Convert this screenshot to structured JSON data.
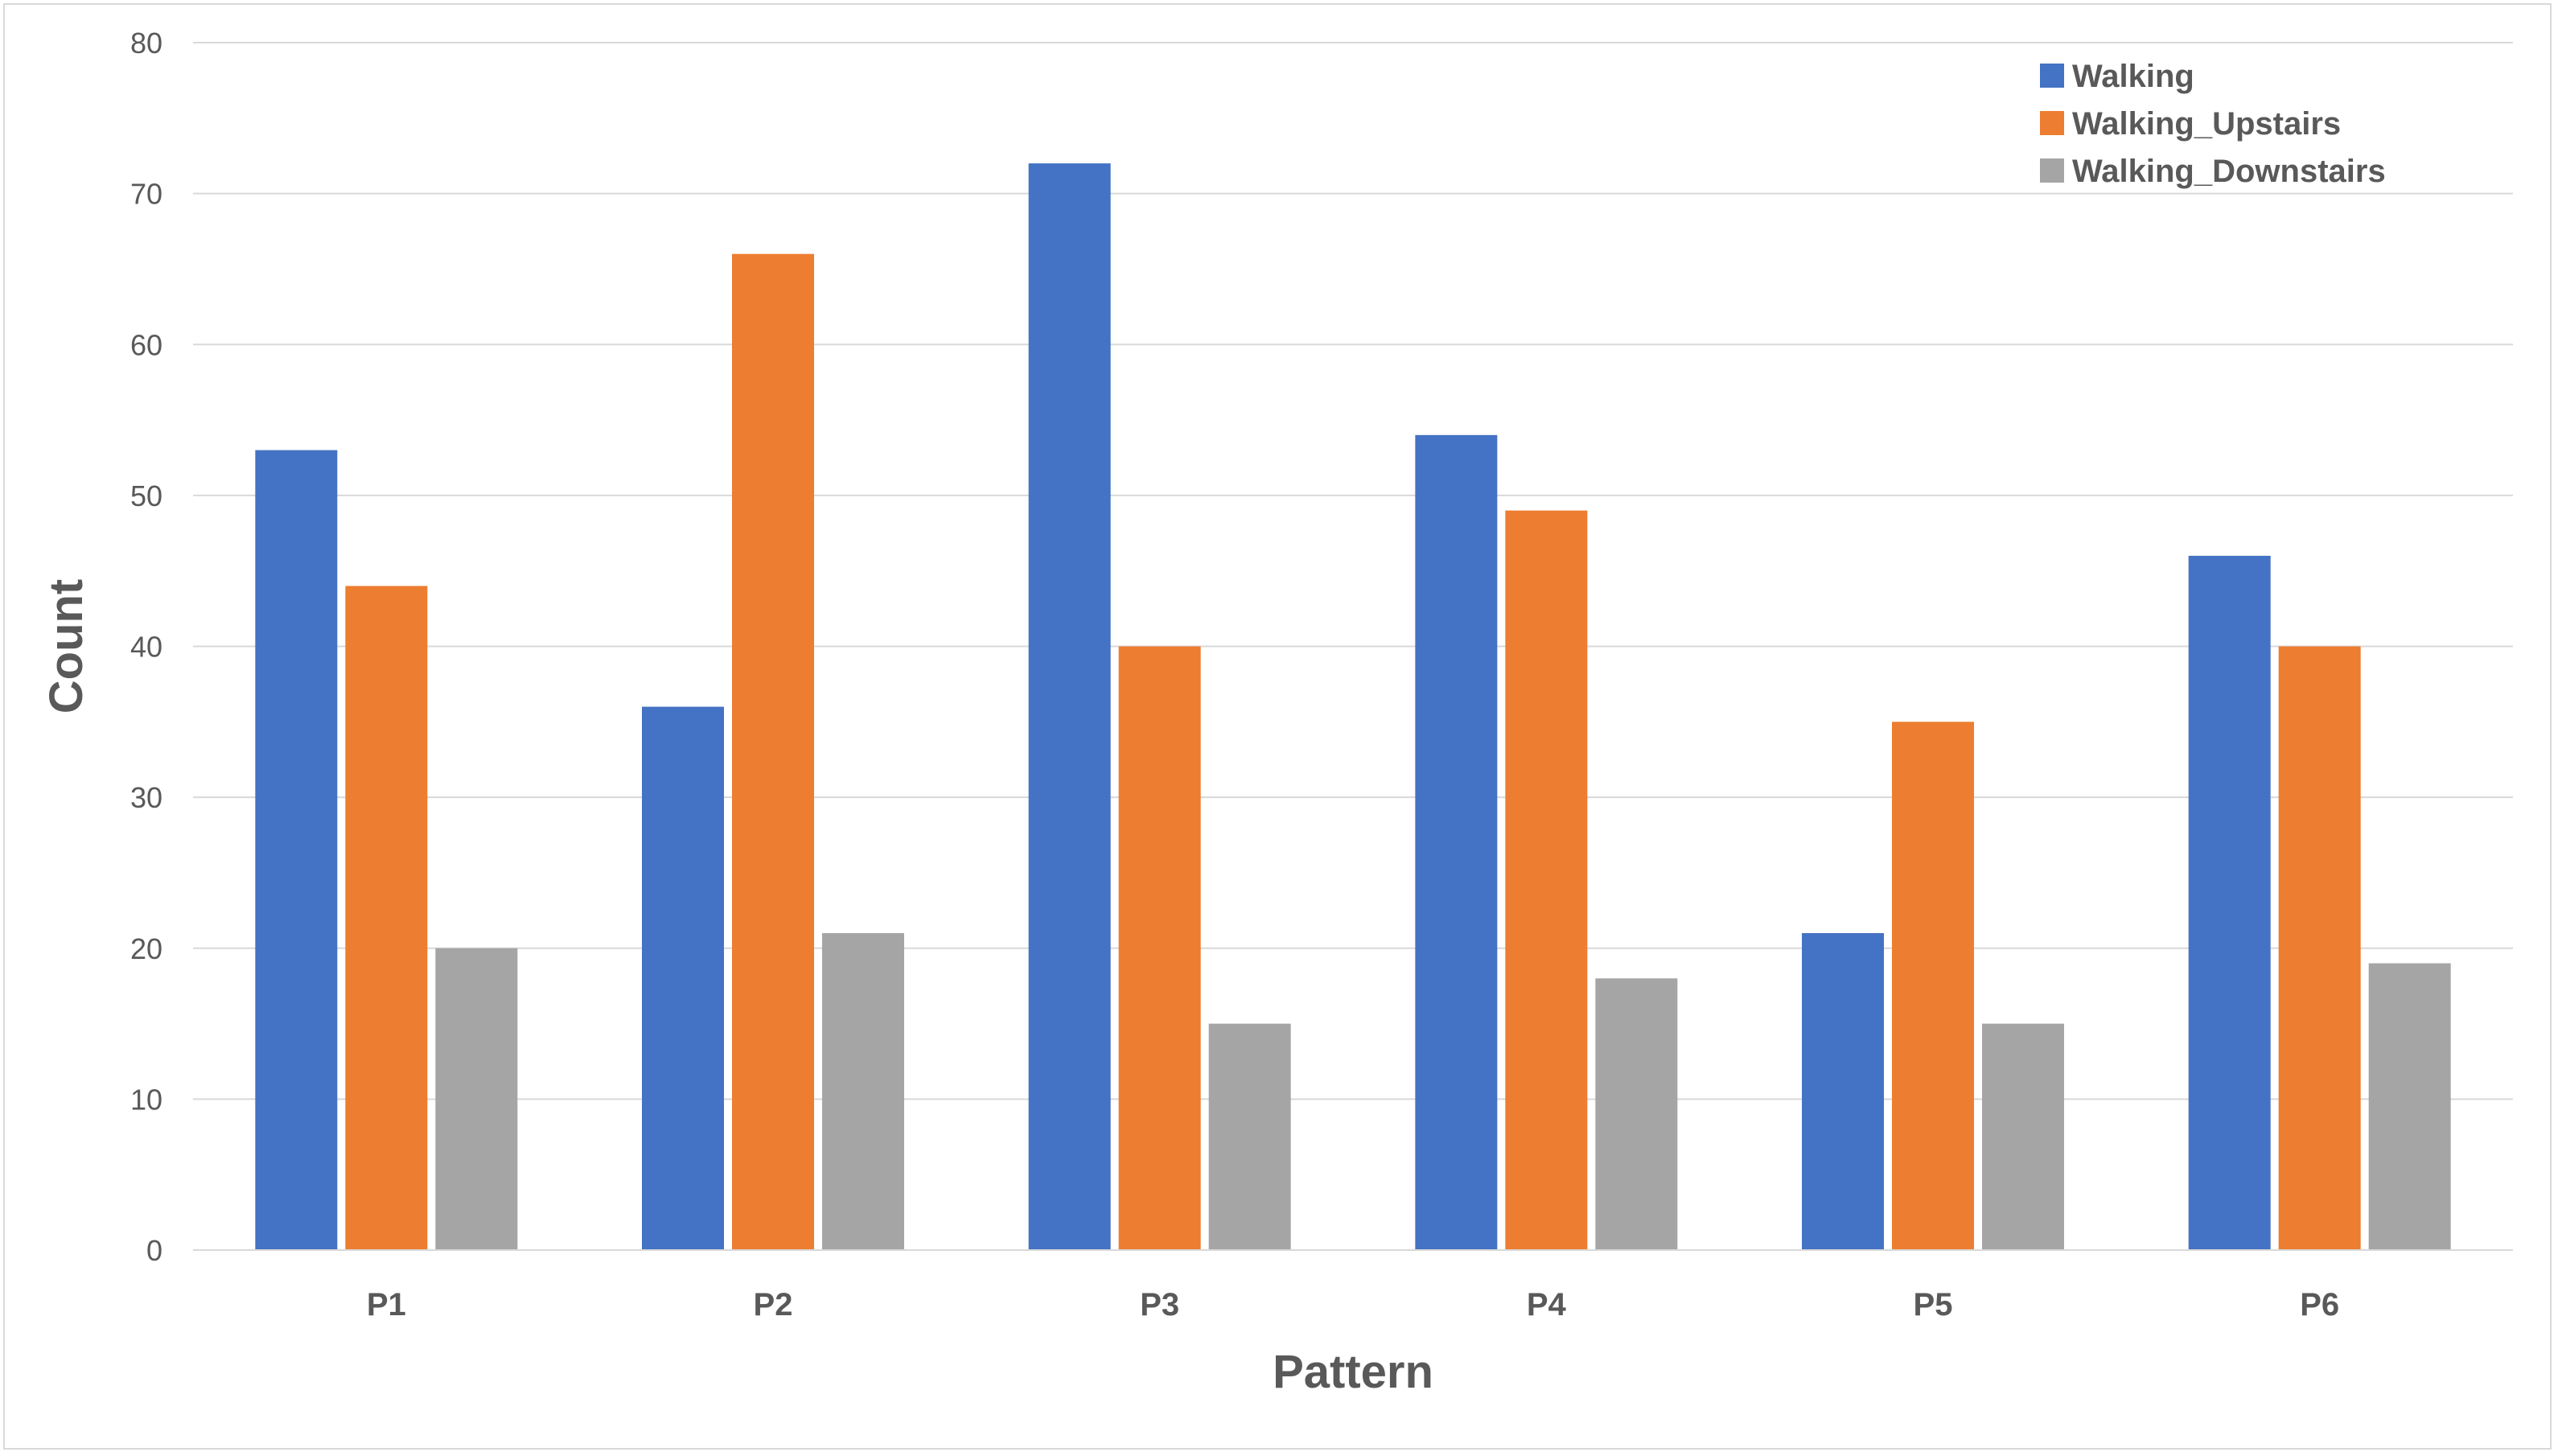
{
  "chart_data": {
    "type": "bar",
    "title": "",
    "xlabel": "Pattern",
    "ylabel": "Count",
    "categories": [
      "P1",
      "P2",
      "P3",
      "P4",
      "P5",
      "P6"
    ],
    "series": [
      {
        "name": "Walking",
        "color": "#4472C4",
        "values": [
          53,
          36,
          72,
          54,
          21,
          46
        ]
      },
      {
        "name": "Walking_Upstairs",
        "color": "#ED7D31",
        "values": [
          44,
          66,
          40,
          49,
          35,
          40
        ]
      },
      {
        "name": "Walking_Downstairs",
        "color": "#A5A5A5",
        "values": [
          20,
          21,
          15,
          18,
          15,
          19
        ]
      }
    ],
    "ylim": [
      0,
      80
    ],
    "yticks": [
      0,
      10,
      20,
      30,
      40,
      50,
      60,
      70,
      80
    ],
    "grid": true,
    "legend_position": "top-right"
  }
}
